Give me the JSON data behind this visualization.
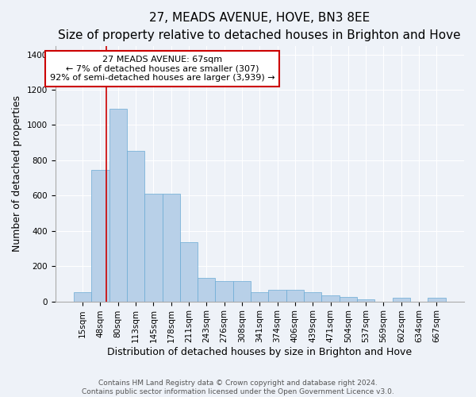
{
  "title": "27, MEADS AVENUE, HOVE, BN3 8EE",
  "subtitle": "Size of property relative to detached houses in Brighton and Hove",
  "xlabel": "Distribution of detached houses by size in Brighton and Hove",
  "ylabel": "Number of detached properties",
  "footer_line1": "Contains HM Land Registry data © Crown copyright and database right 2024.",
  "footer_line2": "Contains public sector information licensed under the Open Government Licence v3.0.",
  "categories": [
    "15sqm",
    "48sqm",
    "80sqm",
    "113sqm",
    "145sqm",
    "178sqm",
    "211sqm",
    "243sqm",
    "276sqm",
    "308sqm",
    "341sqm",
    "374sqm",
    "406sqm",
    "439sqm",
    "471sqm",
    "504sqm",
    "537sqm",
    "569sqm",
    "602sqm",
    "634sqm",
    "667sqm"
  ],
  "values": [
    50,
    745,
    1090,
    855,
    610,
    610,
    335,
    135,
    115,
    115,
    50,
    65,
    65,
    50,
    35,
    25,
    10,
    0,
    20,
    0,
    20
  ],
  "bar_color": "#b8d0e8",
  "bar_edge_color": "#6aaad4",
  "annotation_text_line1": "27 MEADS AVENUE: 67sqm",
  "annotation_text_line2": "← 7% of detached houses are smaller (307)",
  "annotation_text_line3": "92% of semi-detached houses are larger (3,939) →",
  "annotation_box_color": "#ffffff",
  "annotation_box_edge_color": "#cc0000",
  "red_line_color": "#cc0000",
  "red_line_x": 1.35,
  "ylim": [
    0,
    1450
  ],
  "yticks": [
    0,
    200,
    400,
    600,
    800,
    1000,
    1200,
    1400
  ],
  "background_color": "#eef2f8",
  "grid_color": "#ffffff",
  "title_fontsize": 11,
  "subtitle_fontsize": 9.5,
  "axis_label_fontsize": 9,
  "tick_fontsize": 7.5,
  "footer_fontsize": 6.5,
  "annotation_fontsize": 8
}
